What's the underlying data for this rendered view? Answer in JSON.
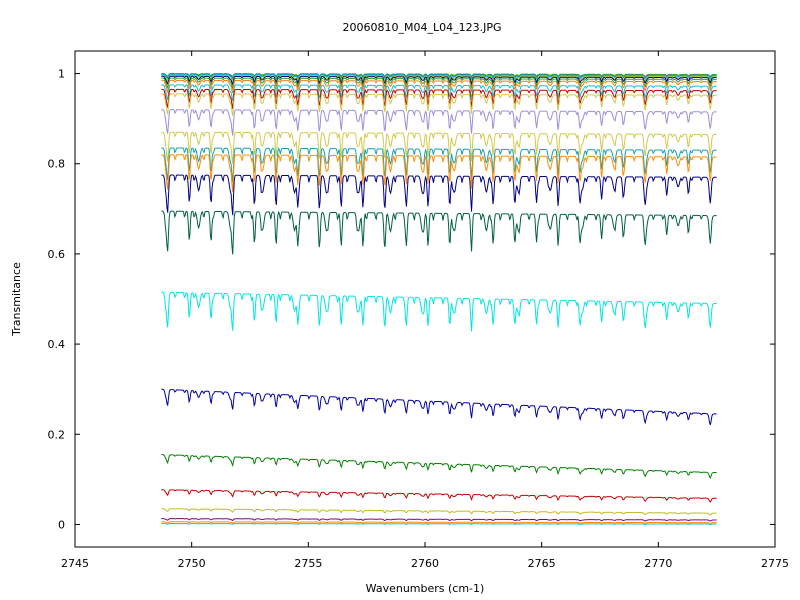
{
  "chart_data": {
    "type": "line",
    "title": "20060810_M04_L04_123.JPG",
    "xlabel": "Wavenumbers (cm-1)",
    "ylabel": "Transmitance",
    "xlim": [
      2745,
      2775
    ],
    "ylim": [
      -0.05,
      1.05
    ],
    "x_ticks": [
      "2745",
      "2750",
      "2755",
      "2760",
      "2765",
      "2770",
      "2775"
    ],
    "y_ticks": [
      "0",
      "0.2",
      "0.4",
      "0.6",
      "0.8",
      "1"
    ],
    "grid": false,
    "legend": "none",
    "x_range_data": [
      2748.7,
      2772.5
    ],
    "series": [
      {
        "start": 1.0,
        "end": 0.998,
        "depth": 0.005,
        "color": "#2ca02c"
      },
      {
        "start": 0.999,
        "end": 0.996,
        "depth": 0.007,
        "color": "#1f77b4"
      },
      {
        "start": 0.998,
        "end": 0.995,
        "depth": 0.009,
        "color": "#17becf"
      },
      {
        "start": 0.996,
        "end": 0.993,
        "depth": 0.012,
        "color": "#bcbd22"
      },
      {
        "start": 0.994,
        "end": 0.991,
        "depth": 0.014,
        "color": "#000080"
      },
      {
        "start": 0.99,
        "end": 0.987,
        "depth": 0.018,
        "color": "#2ca02c"
      },
      {
        "start": 0.985,
        "end": 0.982,
        "depth": 0.022,
        "color": "#ff7f0e"
      },
      {
        "start": 0.975,
        "end": 0.972,
        "depth": 0.028,
        "color": "#17becf"
      },
      {
        "start": 0.965,
        "end": 0.962,
        "depth": 0.034,
        "color": "#c00000"
      },
      {
        "start": 0.955,
        "end": 0.952,
        "depth": 0.038,
        "color": "#d4c84a"
      },
      {
        "start": 0.92,
        "end": 0.915,
        "depth": 0.045,
        "color": "#9b8fd8"
      },
      {
        "start": 0.87,
        "end": 0.865,
        "depth": 0.055,
        "color": "#d4c84a"
      },
      {
        "start": 0.835,
        "end": 0.83,
        "depth": 0.06,
        "color": "#17a0b0"
      },
      {
        "start": 0.82,
        "end": 0.815,
        "depth": 0.065,
        "color": "#ff8c00"
      },
      {
        "start": 0.775,
        "end": 0.77,
        "depth": 0.07,
        "color": "#000080"
      },
      {
        "start": 0.695,
        "end": 0.685,
        "depth": 0.075,
        "color": "#006040"
      },
      {
        "start": 0.515,
        "end": 0.49,
        "depth": 0.065,
        "color": "#00e5e5"
      },
      {
        "start": 0.3,
        "end": 0.245,
        "depth": 0.03,
        "color": "#0000a0"
      },
      {
        "start": 0.155,
        "end": 0.115,
        "depth": 0.015,
        "color": "#008000"
      },
      {
        "start": 0.077,
        "end": 0.058,
        "depth": 0.01,
        "color": "#c00000"
      },
      {
        "start": 0.035,
        "end": 0.025,
        "depth": 0.005,
        "color": "#bcbd22"
      },
      {
        "start": 0.013,
        "end": 0.01,
        "depth": 0.003,
        "color": "#800080"
      },
      {
        "start": 0.006,
        "end": 0.004,
        "depth": 0.002,
        "color": "#ff8c00"
      },
      {
        "start": 0.002,
        "end": 0.001,
        "depth": 0.001,
        "color": "#17becf"
      }
    ]
  }
}
